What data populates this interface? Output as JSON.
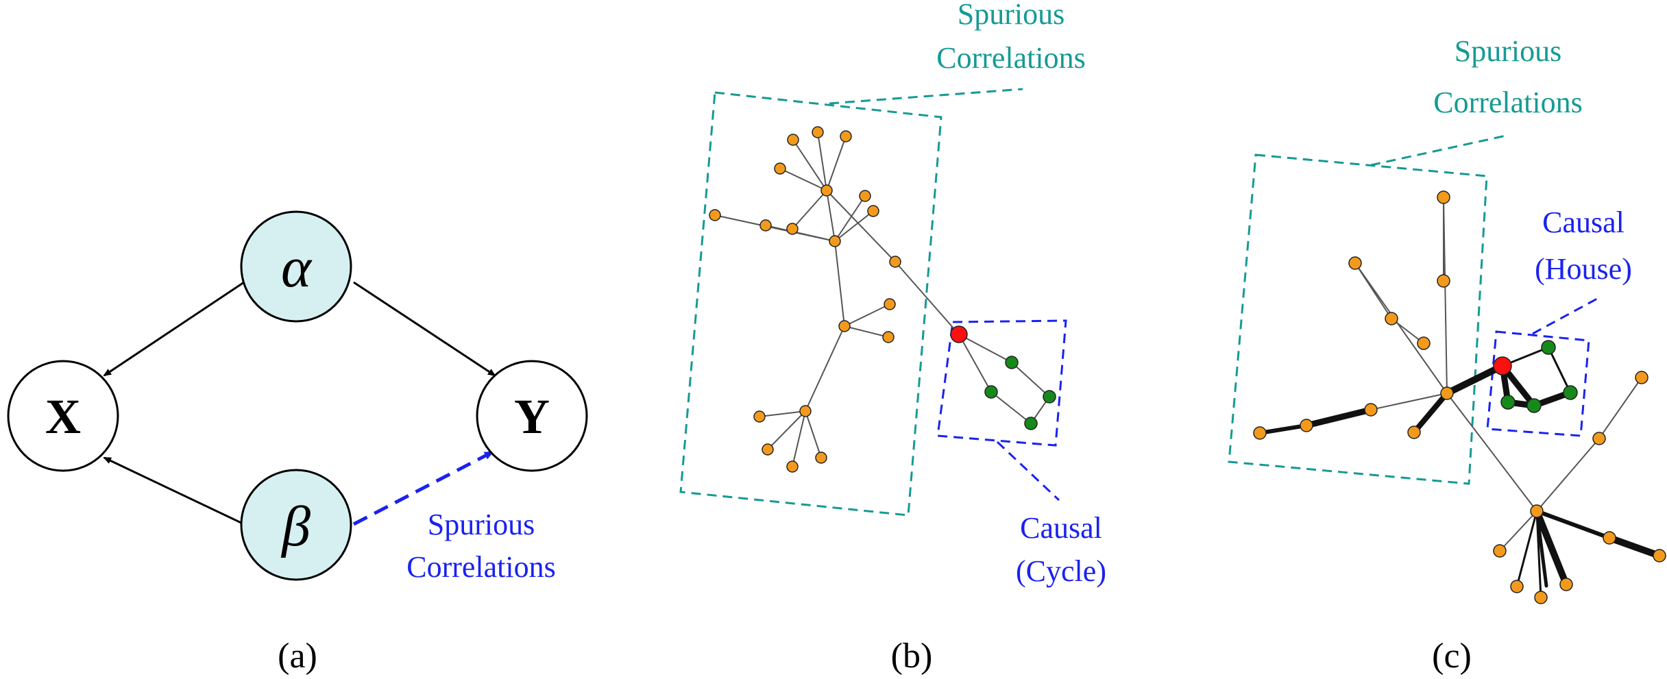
{
  "panels": {
    "a": {
      "caption": "(a)",
      "nodes": {
        "alpha": "α",
        "beta": "β",
        "x": "X",
        "y": "Y"
      },
      "spurious_label": [
        "Spurious",
        "Correlations"
      ]
    },
    "b": {
      "caption": "(b)",
      "spurious_label": [
        "Spurious",
        "Correlations"
      ],
      "causal_label": [
        "Causal",
        "(Cycle)"
      ]
    },
    "c": {
      "caption": "(c)",
      "spurious_label": [
        "Spurious",
        "Correlations"
      ],
      "causal_label": [
        "Causal",
        "(House)"
      ]
    }
  },
  "colors": {
    "teal": "#159a93",
    "blue": "#1a22f0",
    "node_orange": "#f39a1c",
    "node_green": "#158a1a",
    "node_red": "#ff1010",
    "latent_fill": "#d6f0f1"
  }
}
